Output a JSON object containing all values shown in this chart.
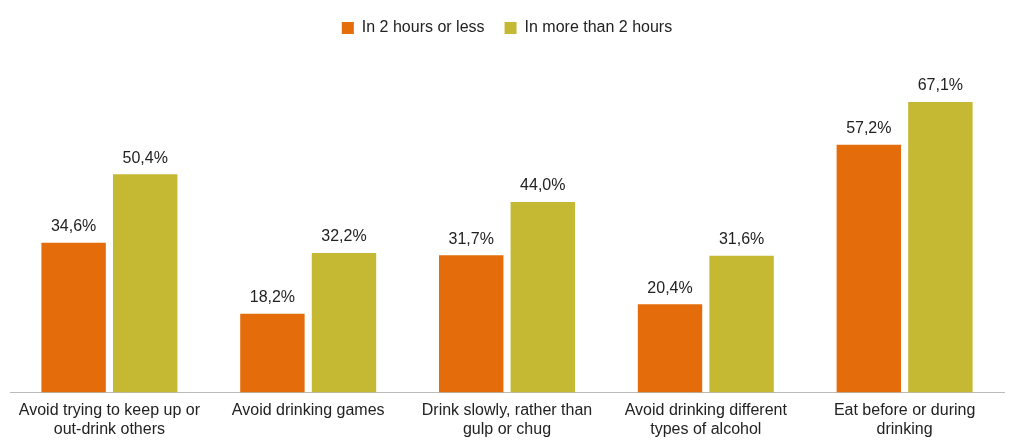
{
  "chart_data": {
    "type": "bar",
    "categories": [
      "Avoid trying to keep up or out-drink others",
      "Avoid drinking games",
      "Drink slowly, rather than gulp or chug",
      "Avoid drinking different types of alcohol",
      "Eat before or during drinking"
    ],
    "series": [
      {
        "name": "In 2 hours or less",
        "color": "#e46c0a",
        "values": [
          34.6,
          18.2,
          31.7,
          20.4,
          57.2
        ],
        "value_labels": [
          "34,6%",
          "18,2%",
          "31,7%",
          "20,4%",
          "57,2%"
        ]
      },
      {
        "name": "In more than 2 hours",
        "color": "#c5b934",
        "values": [
          50.4,
          32.2,
          44.0,
          31.6,
          67.1
        ],
        "value_labels": [
          "50,4%",
          "32,2%",
          "44,0%",
          "31,6%",
          "67,1%"
        ]
      }
    ],
    "legend": "top",
    "grid": false
  }
}
